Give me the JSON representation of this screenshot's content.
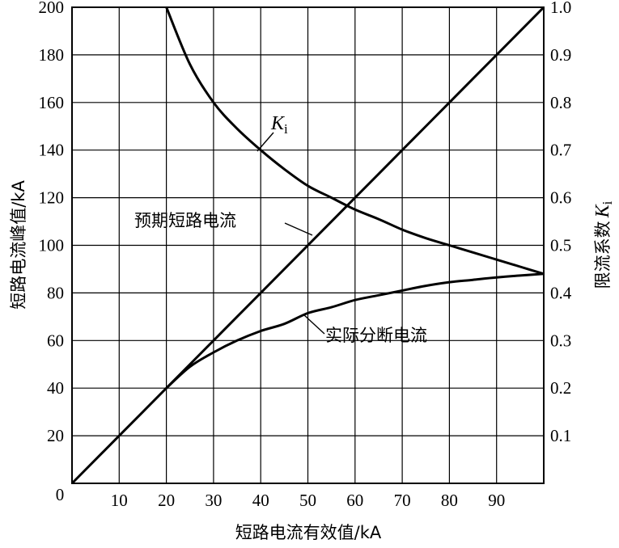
{
  "chart_data": {
    "type": "line",
    "xlabel": "短路电流有效值/kA",
    "ylabel": "短路电流峰值/kA",
    "y2label": "限流系数",
    "y2label_symbol": "K",
    "y2label_sub": "i",
    "xlim": [
      0,
      100
    ],
    "ylim": [
      0,
      200
    ],
    "y2lim": [
      0,
      1.0
    ],
    "grid": true,
    "x_ticks": [
      "0",
      "10",
      "20",
      "30",
      "40",
      "50",
      "60",
      "70",
      "80",
      "90"
    ],
    "y_ticks": [
      "20",
      "40",
      "60",
      "80",
      "100",
      "120",
      "140",
      "160",
      "180",
      "200"
    ],
    "y2_ticks": [
      "0.1",
      "0.2",
      "0.3",
      "0.4",
      "0.5",
      "0.6",
      "0.7",
      "0.8",
      "0.9",
      "1.0"
    ],
    "series": [
      {
        "name": "预期短路电流",
        "axis": "left",
        "x": [
          0,
          10,
          20,
          30,
          40,
          50,
          60,
          70,
          80,
          90,
          100
        ],
        "values": [
          0,
          20,
          40,
          60,
          80,
          100,
          120,
          140,
          160,
          180,
          200
        ]
      },
      {
        "name": "实际分断电流",
        "axis": "left",
        "x": [
          20,
          25,
          30,
          35,
          40,
          45,
          50,
          55,
          60,
          65,
          70,
          75,
          80,
          85,
          90,
          95,
          100
        ],
        "values": [
          40,
          49,
          55,
          60,
          64,
          67,
          71.5,
          74,
          77,
          79,
          81,
          83,
          84.5,
          85.5,
          86.5,
          87.3,
          88
        ]
      },
      {
        "name": "K",
        "name_sub": "i",
        "axis": "right",
        "x": [
          20,
          25,
          30,
          35,
          40,
          45,
          50,
          55,
          60,
          65,
          70,
          75,
          80,
          85,
          90,
          95,
          100
        ],
        "values": [
          1.0,
          0.88,
          0.8,
          0.745,
          0.7,
          0.66,
          0.625,
          0.6,
          0.575,
          0.555,
          0.533,
          0.515,
          0.5,
          0.485,
          0.47,
          0.455,
          0.44
        ]
      }
    ],
    "annotations": {
      "ki_label": "K",
      "ki_sub": "i",
      "prospective_label": "预期短路电流",
      "actual_label": "实际分断电流"
    }
  }
}
